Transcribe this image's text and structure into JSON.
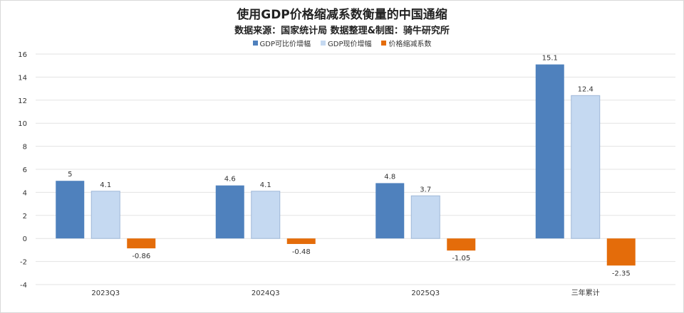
{
  "chart_data": {
    "type": "bar",
    "title": "使用GDP价格缩减系数衡量的中国通缩",
    "subtitle": "数据来源：国家统计局  数据整理&制图：骑牛研究所",
    "categories": [
      "2023Q3",
      "2024Q3",
      "2025Q3",
      "三年累计"
    ],
    "series": [
      {
        "name": "GDP可比价增幅",
        "color": "#4f81bd",
        "values": [
          5,
          4.6,
          4.8,
          15.1
        ],
        "labels": [
          "5",
          "4.6",
          "4.8",
          "15.1"
        ]
      },
      {
        "name": "GDP现价增幅",
        "color": "#c5d9f1",
        "values": [
          4.1,
          4.1,
          3.7,
          12.4
        ],
        "labels": [
          "4.1",
          "4.1",
          "3.7",
          "12.4"
        ]
      },
      {
        "name": "价格缩减系数",
        "color": "#e46c0a",
        "values": [
          -0.86,
          -0.48,
          -1.05,
          -2.35
        ],
        "labels": [
          "-0.86",
          "-0.48",
          "-1.05",
          "-2.35"
        ]
      }
    ],
    "ylim": [
      -4,
      16
    ],
    "yticks": [
      16,
      14,
      12,
      10,
      8,
      6,
      4,
      2,
      0,
      -2,
      -4
    ],
    "grid": true,
    "legend_position": "top-center"
  }
}
